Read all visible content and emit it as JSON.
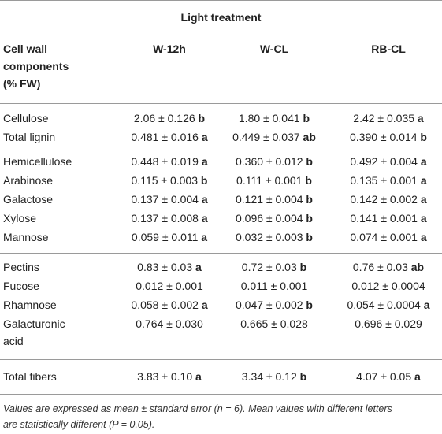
{
  "header": {
    "group_label": "Light treatment",
    "col_component_line1": "Cell wall",
    "col_component_line2": "components",
    "col_component_line3": "(% FW)",
    "col_w12h": "W-12h",
    "col_wcl": "W-CL",
    "col_rbcl": "RB-CL"
  },
  "rows": [
    {
      "name": "Cellulose",
      "w12h": "2.06 ± 0.126",
      "w12h_l": "b",
      "wcl": "1.80 ± 0.041",
      "wcl_l": "b",
      "rbcl": "2.42 ± 0.035",
      "rbcl_l": "a"
    },
    {
      "name": "Total lignin",
      "w12h": "0.481 ± 0.016",
      "w12h_l": "a",
      "wcl": "0.449 ± 0.037",
      "wcl_l": "ab",
      "rbcl": "0.390 ± 0.014",
      "rbcl_l": "b"
    },
    {
      "name": "Hemicellulose",
      "w12h": "0.448 ± 0.019",
      "w12h_l": "a",
      "wcl": "0.360 ± 0.012",
      "wcl_l": "b",
      "rbcl": "0.492 ± 0.004",
      "rbcl_l": "a"
    },
    {
      "name": "Arabinose",
      "w12h": "0.115 ± 0.003",
      "w12h_l": "b",
      "wcl": "0.111 ± 0.001",
      "wcl_l": "b",
      "rbcl": "0.135 ± 0.001",
      "rbcl_l": "a"
    },
    {
      "name": "Galactose",
      "w12h": "0.137 ± 0.004",
      "w12h_l": "a",
      "wcl": "0.121 ± 0.004",
      "wcl_l": "b",
      "rbcl": "0.142 ± 0.002",
      "rbcl_l": "a"
    },
    {
      "name": "Xylose",
      "w12h": "0.137 ± 0.008",
      "w12h_l": "a",
      "wcl": "0.096 ± 0.004",
      "wcl_l": "b",
      "rbcl": "0.141 ± 0.001",
      "rbcl_l": "a"
    },
    {
      "name": "Mannose",
      "w12h": "0.059 ± 0.011",
      "w12h_l": "a",
      "wcl": "0.032 ± 0.003",
      "wcl_l": "b",
      "rbcl": "0.074 ± 0.001",
      "rbcl_l": "a"
    },
    {
      "name": "Pectins",
      "w12h": "0.83 ± 0.03",
      "w12h_l": "a",
      "wcl": "0.72 ± 0.03",
      "wcl_l": "b",
      "rbcl": "0.76 ± 0.03",
      "rbcl_l": "ab"
    },
    {
      "name": "Fucose",
      "w12h": "0.012 ± 0.001",
      "w12h_l": "",
      "wcl": "0.011 ± 0.001",
      "wcl_l": "",
      "rbcl": "0.012 ± 0.0004",
      "rbcl_l": ""
    },
    {
      "name": "Rhamnose",
      "w12h": "0.058 ± 0.002",
      "w12h_l": "a",
      "wcl": "0.047 ± 0.002",
      "wcl_l": "b",
      "rbcl": "0.054 ± 0.0004",
      "rbcl_l": "a"
    },
    {
      "name": "Galacturonic",
      "name2": "acid",
      "w12h": "0.764 ± 0.030",
      "w12h_l": "",
      "wcl": "0.665 ± 0.028",
      "wcl_l": "",
      "rbcl": "0.696 ± 0.029",
      "rbcl_l": ""
    },
    {
      "name": "Total fibers",
      "w12h": "3.83 ± 0.10",
      "w12h_l": "a",
      "wcl": "3.34 ± 0.12",
      "wcl_l": "b",
      "rbcl": "4.07 ± 0.05",
      "rbcl_l": "a"
    }
  ],
  "footnote_line1": "Values are expressed as mean ± standard error (n = 6). Mean values with different letters",
  "footnote_line2": "are statistically different (P = 0.05)."
}
